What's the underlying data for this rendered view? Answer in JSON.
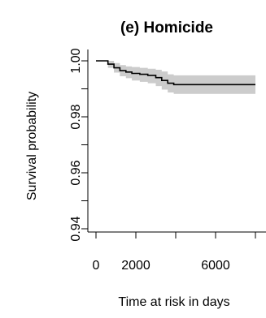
{
  "chart_data": {
    "type": "line",
    "title": "(e) Homicide",
    "xlabel": "Time at risk in days",
    "ylabel": "Survival probability",
    "xlim": [
      0,
      8000
    ],
    "ylim": [
      0.94,
      1.0
    ],
    "x_ticks": [
      0,
      2000,
      6000
    ],
    "x_tick_marks": [
      0,
      2000,
      4000,
      6000,
      8000
    ],
    "y_ticks": [
      "0.94",
      "0.96",
      "0.98",
      "1.00"
    ],
    "y_tick_values": [
      0.94,
      0.96,
      0.98,
      1.0
    ],
    "y_minor_ticks": [
      0.95,
      0.97,
      0.99
    ],
    "grid": false,
    "legend": "none",
    "colors": {
      "line": "#000000",
      "ci_band": "#cccccc"
    },
    "series": [
      {
        "x": [
          0,
          300,
          600,
          900,
          1200,
          1500,
          1800,
          2200,
          2600,
          3000,
          3300,
          3600,
          3900,
          8000
        ],
        "y": [
          1.0,
          1.0,
          0.9988,
          0.9975,
          0.9965,
          0.996,
          0.9955,
          0.9952,
          0.9948,
          0.994,
          0.993,
          0.992,
          0.9915,
          0.9915
        ],
        "lower": [
          1.0,
          1.0,
          0.9975,
          0.9958,
          0.9945,
          0.9938,
          0.993,
          0.9925,
          0.992,
          0.991,
          0.9897,
          0.9887,
          0.9882,
          0.9882
        ],
        "upper": [
          1.0,
          1.0,
          1.0,
          0.9992,
          0.9985,
          0.998,
          0.9978,
          0.9975,
          0.9972,
          0.9968,
          0.9962,
          0.9952,
          0.9948,
          0.9948
        ]
      }
    ]
  }
}
